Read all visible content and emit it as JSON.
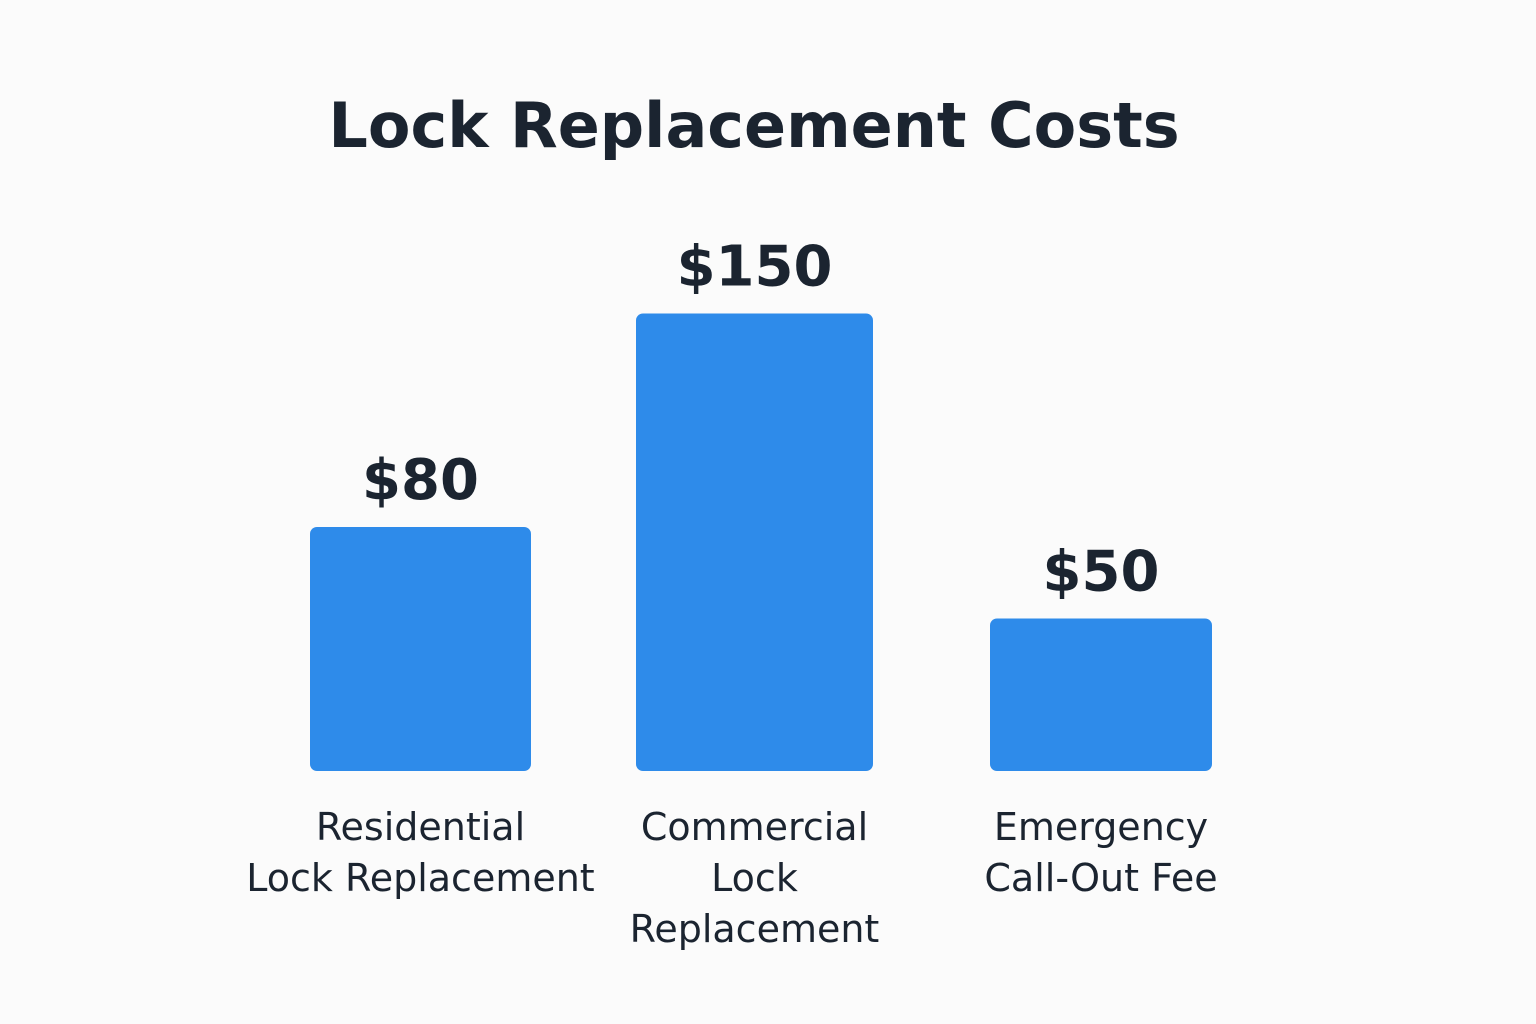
{
  "chart_data": {
    "type": "bar",
    "title": "Lock Replacement Costs",
    "categories": [
      [
        "Residential",
        "Lock Replacement"
      ],
      [
        "Commercial",
        "Lock",
        "Replacement"
      ],
      [
        "Emergency",
        "Call-Out Fee"
      ]
    ],
    "values": [
      80,
      150,
      50
    ],
    "value_labels": [
      "$80",
      "$150",
      "$50"
    ],
    "xlabel": "",
    "ylabel": "",
    "grid": false,
    "axes_visible": false,
    "colors": {
      "bar": "#2e8bea",
      "text": "#1b2430",
      "background": "#fbfbfb"
    }
  }
}
